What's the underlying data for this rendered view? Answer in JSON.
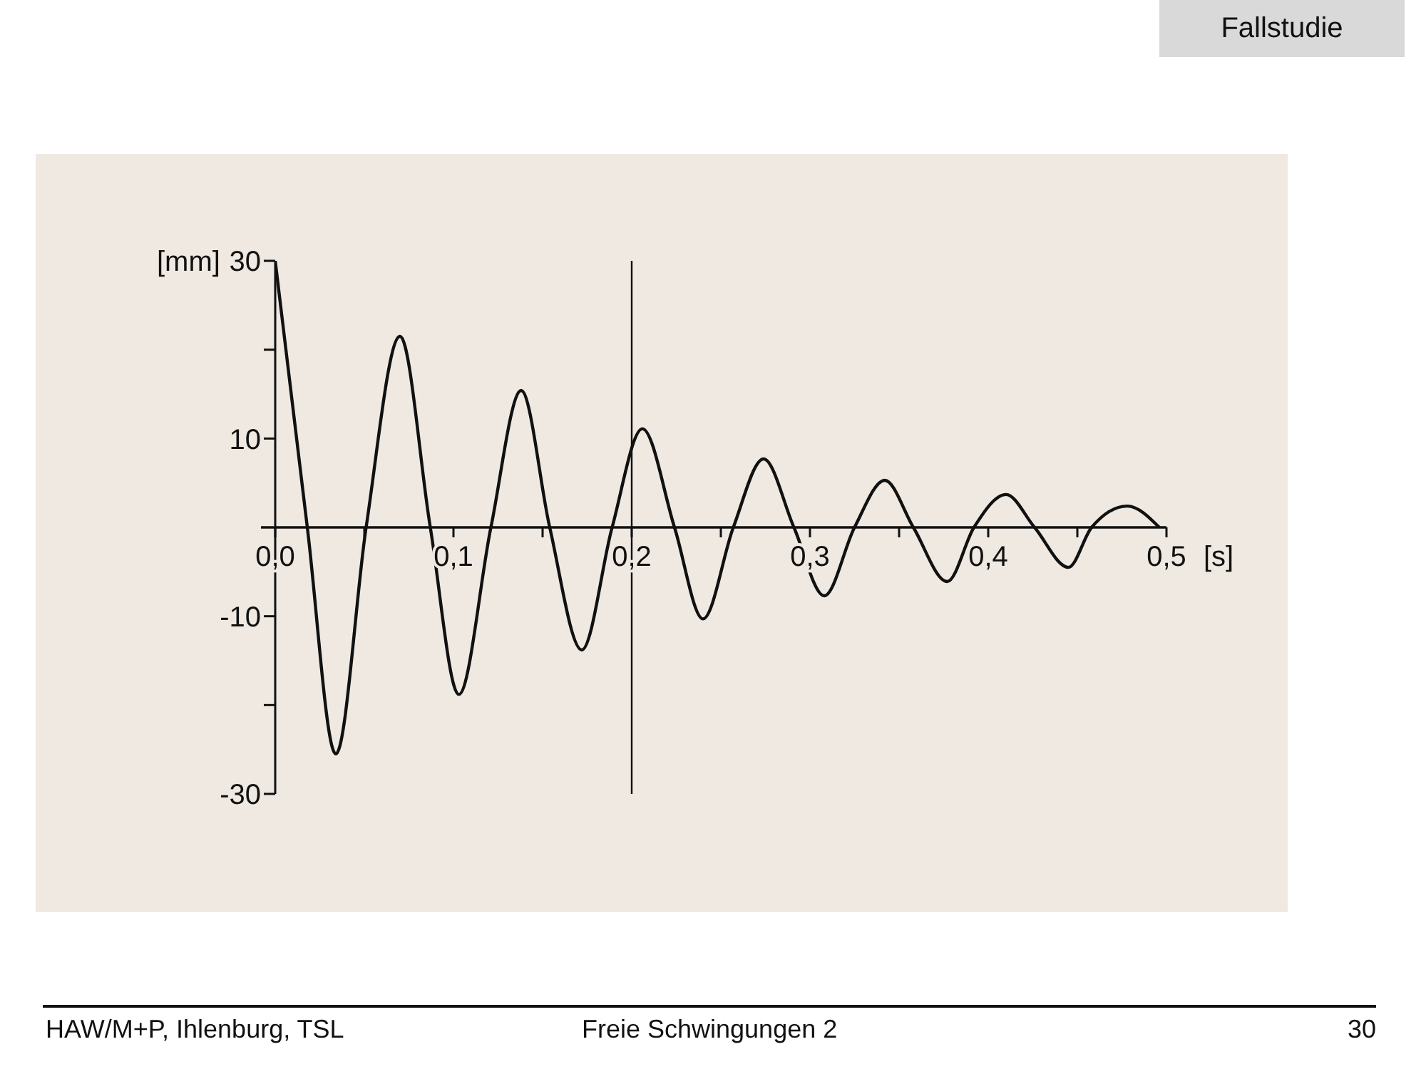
{
  "chart_data": {
    "type": "line",
    "xlabel": "[s]",
    "ylabel": "[mm]",
    "x": [
      0,
      0.018,
      0.034,
      0.051,
      0.07,
      0.087,
      0.103,
      0.121,
      0.138,
      0.154,
      0.172,
      0.189,
      0.206,
      0.224,
      0.24,
      0.257,
      0.274,
      0.291,
      0.308,
      0.325,
      0.342,
      0.358,
      0.377,
      0.392,
      0.41,
      0.426,
      0.445,
      0.458,
      0.478,
      0.496
    ],
    "series": [
      {
        "color": "#111111",
        "values": [
          30,
          0,
          -25.5,
          0,
          21.5,
          0,
          -18.8,
          0,
          15.4,
          0,
          -13.8,
          0,
          11.1,
          0,
          -10.3,
          0,
          7.7,
          0,
          -7.7,
          0,
          5.3,
          0,
          -6.1,
          0,
          3.7,
          0,
          -4.5,
          0,
          2.4,
          0
        ]
      }
    ],
    "xlim": [
      0,
      0.5
    ],
    "ylim": [
      -30,
      30
    ],
    "xticks": [
      {
        "value": 0,
        "label": "0,0"
      },
      {
        "value": 0.05,
        "label": null
      },
      {
        "value": 0.1,
        "label": "0,1"
      },
      {
        "value": 0.15,
        "label": null
      },
      {
        "value": 0.2,
        "label": "0,2"
      },
      {
        "value": 0.25,
        "label": null
      },
      {
        "value": 0.3,
        "label": "0,3"
      },
      {
        "value": 0.35,
        "label": null
      },
      {
        "value": 0.4,
        "label": "0,4"
      },
      {
        "value": 0.45,
        "label": null
      },
      {
        "value": 0.5,
        "label": "0,5"
      }
    ],
    "yticks": [
      30,
      {
        "value": 20,
        "label": null
      },
      10,
      -10,
      {
        "value": -20,
        "label": null
      },
      -30
    ],
    "ref_lines": [
      {
        "axis": "x",
        "value": 0.2,
        "color": "#111111"
      }
    ],
    "marker": "none",
    "line_style": "solid",
    "annotations": [
      "Fallstudie",
      "HAW/M+P, Ihlenburg, TSL",
      "Freie Schwingungen 2",
      "30"
    ]
  }
}
